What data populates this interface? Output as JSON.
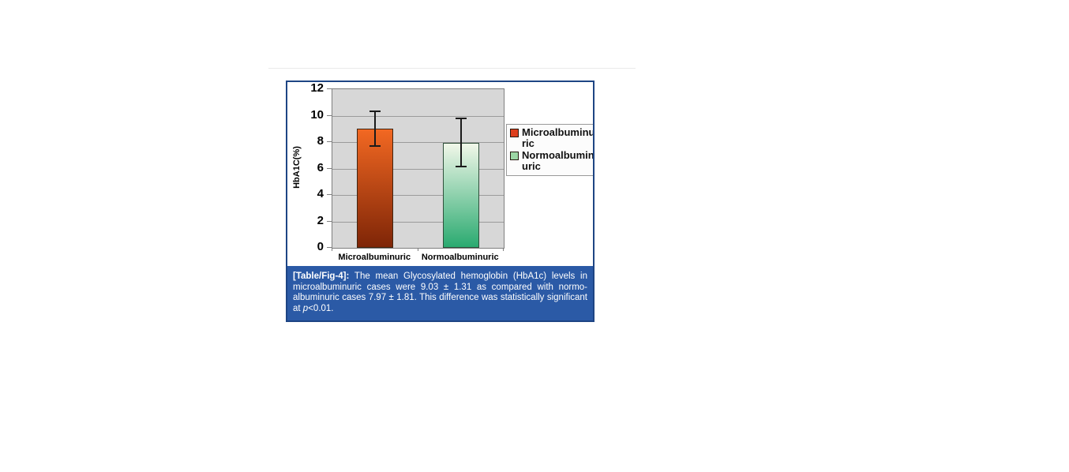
{
  "figure": {
    "border_color": "#1e4584",
    "caption": {
      "background": "#2b5aa6",
      "label": "[Table/Fig-4]:",
      "line1_rest": " The mean Glycosylated hemoglobin (HbA1c) levels in",
      "line2": "microalbuminuric cases were 9.03 ± 1.31 as compared with normo-",
      "line3": "albuminuric cases 7.97 ± 1.81. This difference was statistically significant",
      "line4_pre": "at ",
      "line4_italic": "p",
      "line4_post": "<0.01."
    }
  },
  "chart_data": {
    "type": "bar",
    "categories": [
      "Microalbuminuric",
      "Normoalbuminuric"
    ],
    "values": [
      9.03,
      7.97
    ],
    "errors": [
      1.31,
      1.81
    ],
    "title": "",
    "xlabel": "",
    "ylabel": "HbA1C(%)",
    "yticks": [
      0,
      2,
      4,
      6,
      8,
      10,
      12
    ],
    "ylim": [
      0,
      12
    ],
    "grid": "horizontal",
    "plot_background": "#d7d7d7",
    "gridline_color": "#9b9b9b",
    "error_bar_color": "#1a1a1a",
    "bar_styles": [
      {
        "gradient_top": "#f26822",
        "gradient_bottom": "#7e2507",
        "border": "#3f2512"
      },
      {
        "gradient_top": "#f1f7e9",
        "gradient_bottom": "#2aaa70",
        "border": "#2e4f3a"
      }
    ],
    "legend": {
      "position": "right",
      "items": [
        {
          "label": "Microalbuminuric",
          "lines": [
            "Microalbuminu",
            "ric"
          ],
          "swatch_fill": "#dd3f1d",
          "swatch_border": "#26190f"
        },
        {
          "label": "Normoalbuminuric",
          "lines": [
            "Normoalbumin",
            "uric"
          ],
          "swatch_fill": "#9cd6a4",
          "swatch_border": "#26190f"
        }
      ]
    }
  }
}
